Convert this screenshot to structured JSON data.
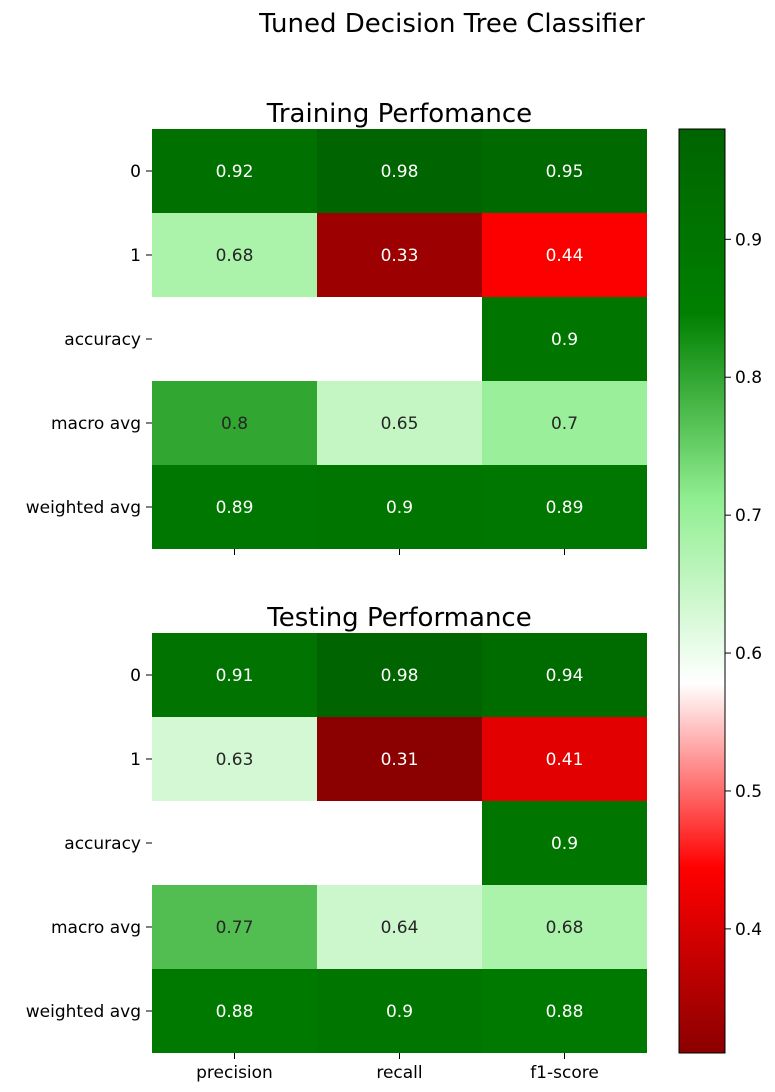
{
  "chart_data": {
    "type": "heatmap",
    "title": "Tuned Decision Tree Classifier",
    "colorbar": {
      "ticks": [
        "0.4",
        "0.5",
        "0.6",
        "0.7",
        "0.8",
        "0.9"
      ],
      "range": [
        0.31,
        0.98
      ],
      "colors": [
        "#8b0000",
        "#ff0000",
        "#ffffff",
        "#90ee90",
        "#008000",
        "#006400"
      ]
    },
    "panels": [
      {
        "title": "Training Perfomance",
        "rows": [
          "0",
          "1",
          "accuracy",
          "macro avg",
          "weighted avg"
        ],
        "columns": [
          "precision",
          "recall",
          "f1-score"
        ],
        "values": [
          [
            0.92,
            0.98,
            0.95
          ],
          [
            0.68,
            0.33,
            0.44
          ],
          [
            null,
            null,
            0.9
          ],
          [
            0.8,
            0.65,
            0.7
          ],
          [
            0.89,
            0.9,
            0.89
          ]
        ],
        "labels": [
          [
            "0.92",
            "0.98",
            "0.95"
          ],
          [
            "0.68",
            "0.33",
            "0.44"
          ],
          [
            "",
            "",
            "0.9"
          ],
          [
            "0.8",
            "0.65",
            "0.7"
          ],
          [
            "0.89",
            "0.9",
            "0.89"
          ]
        ]
      },
      {
        "title": "Testing Performance",
        "rows": [
          "0",
          "1",
          "accuracy",
          "macro avg",
          "weighted avg"
        ],
        "columns": [
          "precision",
          "recall",
          "f1-score"
        ],
        "values": [
          [
            0.91,
            0.98,
            0.94
          ],
          [
            0.63,
            0.31,
            0.41
          ],
          [
            null,
            null,
            0.9
          ],
          [
            0.77,
            0.64,
            0.68
          ],
          [
            0.88,
            0.9,
            0.88
          ]
        ],
        "labels": [
          [
            "0.91",
            "0.98",
            "0.94"
          ],
          [
            "0.63",
            "0.31",
            "0.41"
          ],
          [
            "",
            "",
            "0.9"
          ],
          [
            "0.77",
            "0.64",
            "0.68"
          ],
          [
            "0.88",
            "0.9",
            "0.88"
          ]
        ]
      }
    ]
  }
}
